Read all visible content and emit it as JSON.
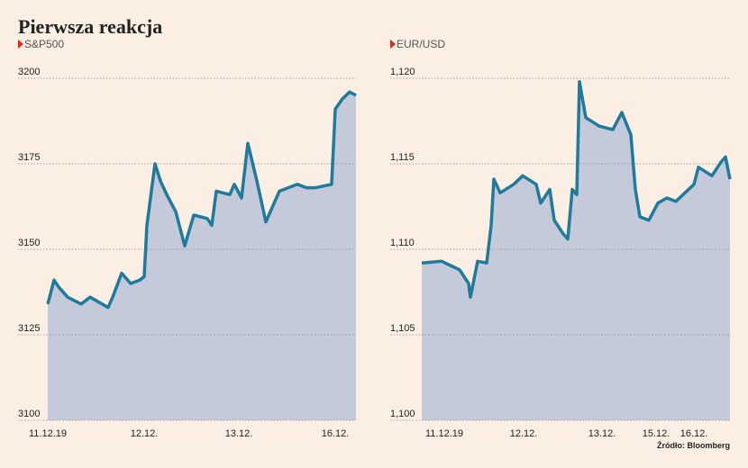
{
  "title": "Pierwsza reakcja",
  "source": "Źródło: Bloomberg",
  "chart_data": [
    {
      "type": "area",
      "subtitle": "S&P500",
      "color": "#1f7a9c",
      "fill": "#c4cad9",
      "grid": true,
      "x": [
        0,
        7,
        12,
        22,
        37,
        47,
        67,
        72,
        82,
        92,
        102,
        107,
        110,
        119,
        125,
        132,
        142,
        152,
        162,
        177,
        182,
        187,
        202,
        207,
        215,
        222,
        232,
        242,
        257,
        277,
        287,
        297,
        315,
        319,
        327,
        335,
        342
      ],
      "values": [
        3134,
        3141,
        3139,
        3136,
        3134,
        3136,
        3133,
        3136,
        3143,
        3140,
        3141,
        3142,
        3157,
        3175,
        3170,
        3166,
        3161,
        3151,
        3160,
        3159,
        3157,
        3167,
        3166,
        3169,
        3165,
        3181,
        3170,
        3158,
        3167,
        3169,
        3168,
        3168,
        3169,
        3191,
        3194,
        3196,
        3195
      ],
      "xlim": [
        0,
        342
      ],
      "xticks": [
        {
          "value": 0,
          "label": "11.12.19"
        },
        {
          "value": 107,
          "label": "12.12."
        },
        {
          "value": 212,
          "label": "13.12."
        },
        {
          "value": 319,
          "label": "16.12."
        }
      ],
      "ylim": [
        3100,
        3200
      ],
      "yticks": [
        3100,
        3125,
        3150,
        3175,
        3200
      ]
    },
    {
      "type": "area",
      "subtitle": "EUR/USD",
      "color": "#1f7a9c",
      "fill": "#c4cad9",
      "grid": true,
      "x": [
        0,
        22,
        42,
        52,
        54,
        62,
        72,
        77,
        80,
        87,
        102,
        112,
        127,
        132,
        142,
        147,
        157,
        162,
        167,
        172,
        175,
        182,
        197,
        212,
        222,
        232,
        237,
        242,
        252,
        262,
        272,
        282,
        292,
        302,
        307,
        322,
        332,
        337,
        342
      ],
      "values": [
        1.1092,
        1.1093,
        1.1088,
        1.108,
        1.1072,
        1.1093,
        1.1092,
        1.1114,
        1.1141,
        1.1133,
        1.1138,
        1.1143,
        1.1138,
        1.1127,
        1.1135,
        1.1117,
        1.1109,
        1.1106,
        1.1135,
        1.1132,
        1.1198,
        1.1177,
        1.1172,
        1.117,
        1.118,
        1.1167,
        1.1135,
        1.1119,
        1.1117,
        1.1127,
        1.113,
        1.1128,
        1.1133,
        1.1138,
        1.1148,
        1.1143,
        1.1151,
        1.1154,
        1.1141
      ],
      "xlim": [
        0,
        342
      ],
      "xticks": [
        {
          "value": 25,
          "label": "11.12.19"
        },
        {
          "value": 113,
          "label": "12.12."
        },
        {
          "value": 200,
          "label": "13.12."
        },
        {
          "value": 260,
          "label": "15.12."
        },
        {
          "value": 302,
          "label": "16.12."
        }
      ],
      "ylim": [
        1.1,
        1.12
      ],
      "yticks": [
        {
          "value": 1.1,
          "label": "1,100"
        },
        {
          "value": 1.105,
          "label": "1,105"
        },
        {
          "value": 1.11,
          "label": "1,110"
        },
        {
          "value": 1.115,
          "label": "1,115"
        },
        {
          "value": 1.12,
          "label": "1,120"
        }
      ]
    }
  ]
}
